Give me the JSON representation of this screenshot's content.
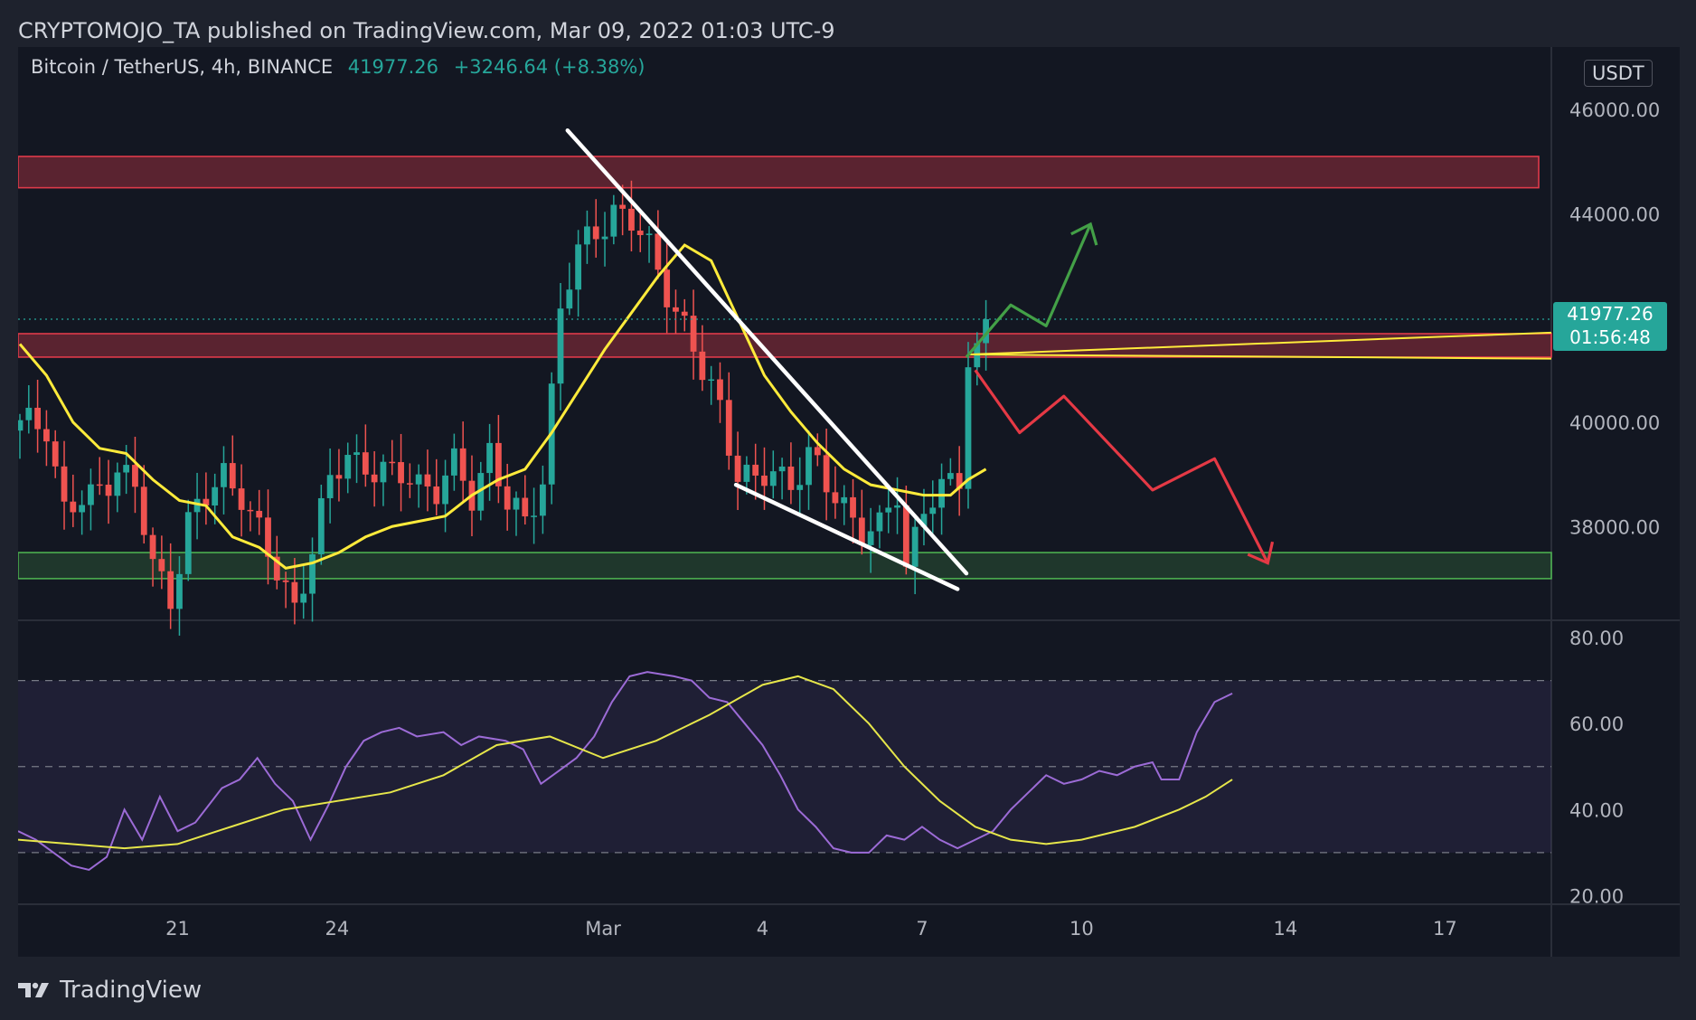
{
  "header": {
    "published_line": "CRYPTOMOJO_TA published on TradingView.com, Mar 09, 2022 01:03 UTC-9"
  },
  "legend": {
    "symbol": "Bitcoin / TetherUS, 4h, BINANCE",
    "price": "41977.26",
    "change": "+3246.64 (+8.38%)"
  },
  "currency_badge": "USDT",
  "price_tag": {
    "price": "41977.26",
    "countdown": "01:56:48"
  },
  "footer": {
    "brand": "TradingView"
  },
  "colors": {
    "bg": "#131722",
    "up": "#26a69a",
    "down": "#ef5350",
    "ma": "#ffeb3b",
    "rsi": "#9c6bd6",
    "rsi_ma": "#e6e64a",
    "zone_red": "#e03a4a",
    "zone_green": "#4caf50"
  },
  "chart_data": [
    {
      "type": "candlestick",
      "title": "Bitcoin / TetherUS, 4h, BINANCE",
      "ylim": [
        36200,
        47200
      ],
      "y_ticks": [
        46000,
        44000,
        40000,
        38000
      ],
      "y_tick_labels": [
        "46000.00",
        "44000.00",
        "40000.00",
        "38000.00"
      ],
      "x_ticks": [
        {
          "label": "21",
          "t": 18
        },
        {
          "label": "24",
          "t": 36
        },
        {
          "label": "Mar",
          "t": 66
        },
        {
          "label": "4",
          "t": 84
        },
        {
          "label": "7",
          "t": 102
        },
        {
          "label": "10",
          "t": 120
        },
        {
          "label": "14",
          "t": 143
        },
        {
          "label": "17",
          "t": 161
        }
      ],
      "anchor_closes": [
        [
          0,
          39900
        ],
        [
          3,
          40000
        ],
        [
          5,
          38300
        ],
        [
          8,
          38500
        ],
        [
          11,
          39200
        ],
        [
          13,
          38700
        ],
        [
          15,
          37200
        ],
        [
          17,
          36700
        ],
        [
          19,
          38100
        ],
        [
          21,
          38500
        ],
        [
          23,
          39000
        ],
        [
          25,
          38700
        ],
        [
          28,
          37400
        ],
        [
          31,
          36500
        ],
        [
          33,
          37600
        ],
        [
          35,
          38800
        ],
        [
          37,
          39400
        ],
        [
          39,
          39200
        ],
        [
          42,
          38900
        ],
        [
          44,
          39000
        ],
        [
          47,
          38700
        ],
        [
          49,
          39100
        ],
        [
          51,
          38600
        ],
        [
          53,
          39500
        ],
        [
          55,
          38400
        ],
        [
          57,
          38000
        ],
        [
          59,
          39000
        ],
        [
          61,
          42200
        ],
        [
          63,
          43200
        ],
        [
          65,
          43700
        ],
        [
          67,
          44100
        ],
        [
          69,
          43800
        ],
        [
          71,
          43300
        ],
        [
          73,
          42600
        ],
        [
          75,
          41800
        ],
        [
          77,
          40900
        ],
        [
          79,
          40300
        ],
        [
          81,
          39100
        ],
        [
          83,
          38800
        ],
        [
          85,
          39000
        ],
        [
          87,
          38900
        ],
        [
          89,
          39400
        ],
        [
          91,
          38700
        ],
        [
          93,
          38400
        ],
        [
          95,
          38000
        ],
        [
          97,
          37900
        ],
        [
          99,
          38600
        ],
        [
          100,
          37200
        ],
        [
          101,
          37900
        ],
        [
          102,
          38500
        ],
        [
          104,
          38600
        ],
        [
          106,
          38900
        ],
        [
          107,
          41200
        ],
        [
          108,
          41400
        ],
        [
          109,
          41977
        ]
      ],
      "sma_closes": [
        [
          0,
          41500
        ],
        [
          3,
          40900
        ],
        [
          6,
          40000
        ],
        [
          9,
          39500
        ],
        [
          12,
          39400
        ],
        [
          15,
          38900
        ],
        [
          18,
          38500
        ],
        [
          21,
          38400
        ],
        [
          24,
          37800
        ],
        [
          27,
          37600
        ],
        [
          30,
          37200
        ],
        [
          33,
          37300
        ],
        [
          36,
          37500
        ],
        [
          39,
          37800
        ],
        [
          42,
          38000
        ],
        [
          45,
          38100
        ],
        [
          48,
          38200
        ],
        [
          51,
          38600
        ],
        [
          54,
          38900
        ],
        [
          57,
          39100
        ],
        [
          60,
          39800
        ],
        [
          63,
          40600
        ],
        [
          66,
          41400
        ],
        [
          69,
          42100
        ],
        [
          72,
          42800
        ],
        [
          75,
          43400
        ],
        [
          78,
          43100
        ],
        [
          81,
          42000
        ],
        [
          84,
          40900
        ],
        [
          87,
          40200
        ],
        [
          90,
          39600
        ],
        [
          93,
          39100
        ],
        [
          96,
          38800
        ],
        [
          99,
          38700
        ],
        [
          102,
          38600
        ],
        [
          105,
          38600
        ],
        [
          107,
          38900
        ],
        [
          109,
          39100
        ]
      ],
      "zones": [
        {
          "name": "resistance-top",
          "low": 44500,
          "high": 45100
        },
        {
          "name": "resistance-mid",
          "low": 41250,
          "high": 41700
        },
        {
          "name": "support",
          "low": 37000,
          "high": 37500
        }
      ],
      "trendlines": [
        {
          "name": "wedge-upper",
          "from": [
            62,
            45600
          ],
          "to": [
            107,
            37100
          ]
        },
        {
          "name": "wedge-lower",
          "from": [
            81,
            38800
          ],
          "to": [
            106,
            36800
          ]
        }
      ],
      "projections": [
        {
          "name": "bullish",
          "points": [
            [
              107,
              41250
            ],
            [
              112,
              42250
            ],
            [
              116,
              41850
            ],
            [
              121,
              43800
            ]
          ]
        },
        {
          "name": "bearish",
          "points": [
            [
              108,
              41000
            ],
            [
              113,
              39800
            ],
            [
              118,
              40500
            ],
            [
              128,
              38700
            ],
            [
              135,
              39300
            ],
            [
              141,
              37300
            ]
          ]
        }
      ],
      "price_line": 41977.26,
      "last_price": 41977.26
    },
    {
      "type": "line",
      "title": "RSI",
      "ylim": [
        18,
        84
      ],
      "y_ticks": [
        80,
        60,
        40,
        20
      ],
      "y_tick_labels": [
        "80.00",
        "60.00",
        "40.00",
        "20.00"
      ],
      "band": [
        30,
        70
      ],
      "mid_level": 50,
      "rsi": [
        [
          0,
          35
        ],
        [
          2,
          33
        ],
        [
          4,
          30
        ],
        [
          6,
          27
        ],
        [
          8,
          26
        ],
        [
          10,
          29
        ],
        [
          12,
          40
        ],
        [
          14,
          33
        ],
        [
          16,
          43
        ],
        [
          18,
          35
        ],
        [
          20,
          37
        ],
        [
          23,
          45
        ],
        [
          25,
          47
        ],
        [
          27,
          52
        ],
        [
          29,
          46
        ],
        [
          31,
          42
        ],
        [
          33,
          33
        ],
        [
          35,
          41
        ],
        [
          37,
          50
        ],
        [
          39,
          56
        ],
        [
          41,
          58
        ],
        [
          43,
          59
        ],
        [
          45,
          57
        ],
        [
          48,
          58
        ],
        [
          50,
          55
        ],
        [
          52,
          57
        ],
        [
          55,
          56
        ],
        [
          57,
          54
        ],
        [
          59,
          46
        ],
        [
          61,
          49
        ],
        [
          63,
          52
        ],
        [
          65,
          57
        ],
        [
          67,
          65
        ],
        [
          69,
          71
        ],
        [
          71,
          72
        ],
        [
          74,
          71
        ],
        [
          76,
          70
        ],
        [
          78,
          66
        ],
        [
          80,
          65
        ],
        [
          82,
          60
        ],
        [
          84,
          55
        ],
        [
          86,
          48
        ],
        [
          88,
          40
        ],
        [
          90,
          36
        ],
        [
          92,
          31
        ],
        [
          94,
          30
        ],
        [
          96,
          30
        ],
        [
          98,
          34
        ],
        [
          100,
          33
        ],
        [
          102,
          36
        ],
        [
          104,
          33
        ],
        [
          106,
          31
        ],
        [
          108,
          33
        ],
        [
          110,
          35
        ],
        [
          112,
          40
        ],
        [
          114,
          44
        ],
        [
          116,
          48
        ],
        [
          118,
          46
        ],
        [
          120,
          47
        ],
        [
          122,
          49
        ],
        [
          124,
          48
        ],
        [
          126,
          50
        ],
        [
          128,
          51
        ],
        [
          129,
          47
        ],
        [
          131,
          47
        ],
        [
          133,
          58
        ],
        [
          135,
          65
        ],
        [
          137,
          67
        ]
      ],
      "rsi_ma": [
        [
          0,
          33
        ],
        [
          6,
          32
        ],
        [
          12,
          31
        ],
        [
          18,
          32
        ],
        [
          24,
          36
        ],
        [
          30,
          40
        ],
        [
          36,
          42
        ],
        [
          42,
          44
        ],
        [
          48,
          48
        ],
        [
          54,
          55
        ],
        [
          60,
          57
        ],
        [
          66,
          52
        ],
        [
          72,
          56
        ],
        [
          78,
          62
        ],
        [
          84,
          69
        ],
        [
          88,
          71
        ],
        [
          92,
          68
        ],
        [
          96,
          60
        ],
        [
          100,
          50
        ],
        [
          104,
          42
        ],
        [
          108,
          36
        ],
        [
          112,
          33
        ],
        [
          116,
          32
        ],
        [
          120,
          33
        ],
        [
          126,
          36
        ],
        [
          131,
          40
        ],
        [
          134,
          43
        ],
        [
          137,
          47
        ]
      ]
    }
  ]
}
